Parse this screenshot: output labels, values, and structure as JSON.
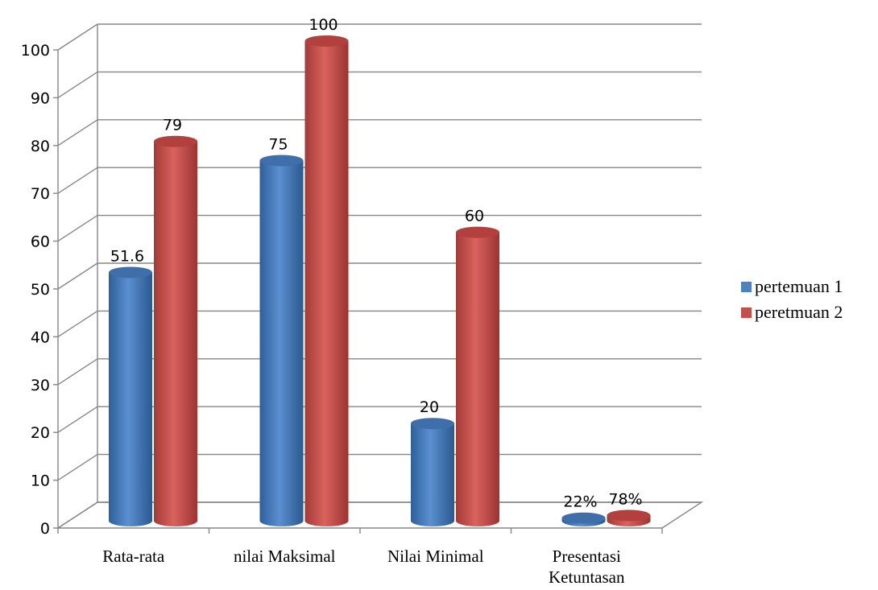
{
  "chart_data": {
    "type": "bar",
    "categories": [
      "Rata-rata",
      "nilai Maksimal",
      "Nilai Minimal",
      "Presentasi\nKetuntasan"
    ],
    "series": [
      {
        "name": "pertemuan 1",
        "values": [
          51.6,
          75,
          20,
          0.22
        ],
        "labels": [
          "51.6",
          "75",
          "20",
          "22%"
        ],
        "color": "#4f81bd"
      },
      {
        "name": "peretmuan 2",
        "values": [
          79,
          100,
          60,
          0.78
        ],
        "labels": [
          "79",
          "100",
          "60",
          "78%"
        ],
        "color": "#c0504d"
      }
    ],
    "ylim": [
      0,
      100
    ],
    "yticks": [
      "0",
      "10",
      "20",
      "30",
      "40",
      "50",
      "60",
      "70",
      "80",
      "90",
      "100"
    ],
    "grid": true,
    "legend": "right",
    "style": "3d-cylinder"
  }
}
